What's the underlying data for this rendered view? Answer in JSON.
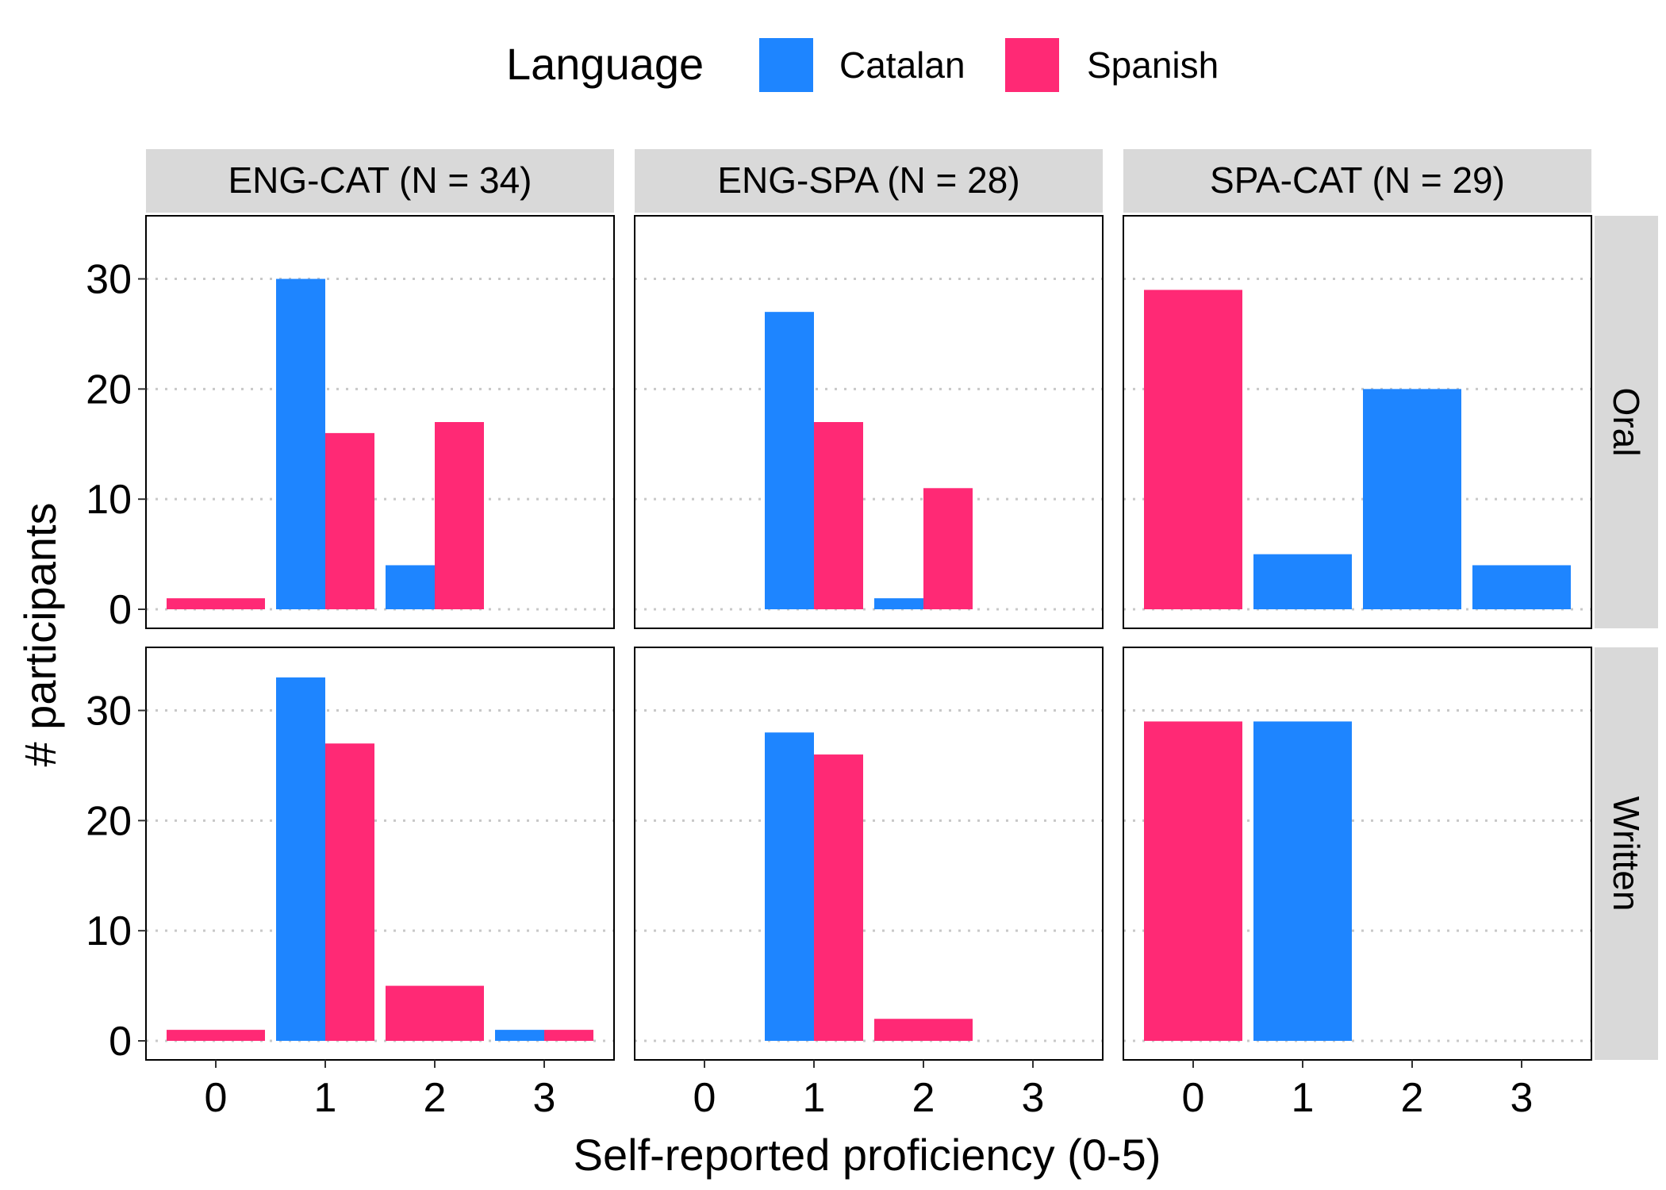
{
  "colors": {
    "catalan": "#1E85FF",
    "spanish": "#FF2975",
    "strip_bg": "#D9D9D9",
    "grid": "#C8C8C8"
  },
  "legend": {
    "title": "Language",
    "items": [
      {
        "key": "catalan",
        "label": "Catalan"
      },
      {
        "key": "spanish",
        "label": "Spanish"
      }
    ]
  },
  "axes": {
    "xlabel": "Self-reported proficiency (0-5)",
    "ylabel": "# participants"
  },
  "chart_data": {
    "type": "bar",
    "facet_columns": [
      "ENG-CAT (N = 34)",
      "ENG-SPA (N = 28)",
      "SPA-CAT (N = 29)"
    ],
    "facet_rows": [
      "Oral",
      "Written"
    ],
    "categories": [
      "0",
      "1",
      "2",
      "3"
    ],
    "ylim": [
      0,
      34
    ],
    "yticks": [
      0,
      10,
      20,
      30
    ],
    "grid": "horizontal dotted",
    "legend_position": "top",
    "panels": [
      {
        "column": "ENG-CAT (N = 34)",
        "row": "Oral",
        "series": [
          {
            "name": "Catalan",
            "values": [
              0,
              30,
              4,
              0
            ]
          },
          {
            "name": "Spanish",
            "values": [
              1,
              16,
              17,
              0
            ]
          }
        ]
      },
      {
        "column": "ENG-SPA (N = 28)",
        "row": "Oral",
        "series": [
          {
            "name": "Catalan",
            "values": [
              0,
              27,
              1,
              0
            ]
          },
          {
            "name": "Spanish",
            "values": [
              0,
              17,
              11,
              0
            ]
          }
        ]
      },
      {
        "column": "SPA-CAT (N = 29)",
        "row": "Oral",
        "series": [
          {
            "name": "Catalan",
            "values": [
              0,
              5,
              20,
              4
            ]
          },
          {
            "name": "Spanish",
            "values": [
              29,
              0,
              0,
              0
            ]
          }
        ]
      },
      {
        "column": "ENG-CAT (N = 34)",
        "row": "Written",
        "series": [
          {
            "name": "Catalan",
            "values": [
              0,
              33,
              0,
              1
            ]
          },
          {
            "name": "Spanish",
            "values": [
              1,
              27,
              5,
              1
            ]
          }
        ]
      },
      {
        "column": "ENG-SPA (N = 28)",
        "row": "Written",
        "series": [
          {
            "name": "Catalan",
            "values": [
              0,
              28,
              0,
              0
            ]
          },
          {
            "name": "Spanish",
            "values": [
              0,
              26,
              2,
              0
            ]
          }
        ]
      },
      {
        "column": "SPA-CAT (N = 29)",
        "row": "Written",
        "series": [
          {
            "name": "Catalan",
            "values": [
              0,
              29,
              0,
              0
            ]
          },
          {
            "name": "Spanish",
            "values": [
              29,
              0,
              0,
              0
            ]
          }
        ]
      }
    ]
  }
}
